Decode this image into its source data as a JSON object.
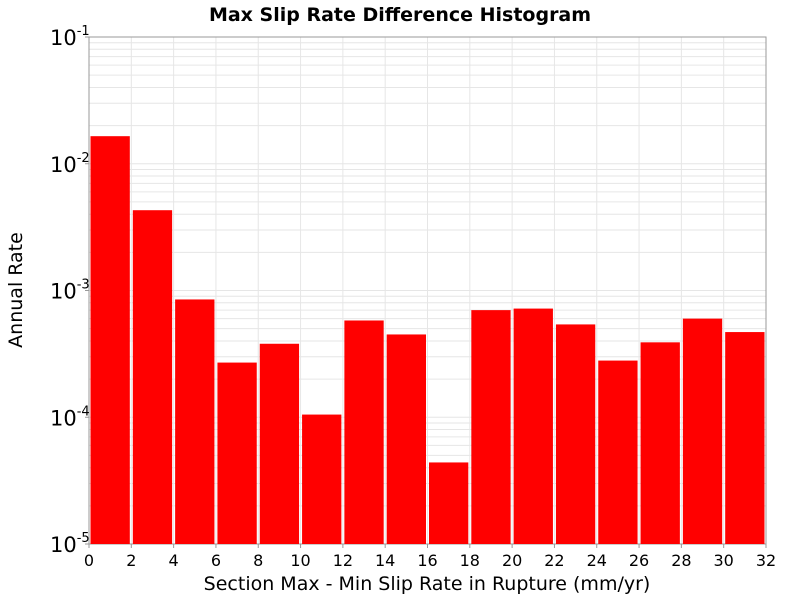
{
  "chart_data": {
    "type": "bar",
    "title": "Max Slip Rate Difference Histogram",
    "xlabel": "Section Max - Min Slip Rate in Rupture (mm/yr)",
    "ylabel": "Annual Rate",
    "y_scale": "log",
    "ylim": [
      1e-05,
      0.1
    ],
    "xlim": [
      0,
      32
    ],
    "bin_width": 2,
    "x_ticks": [
      "0",
      "2",
      "4",
      "6",
      "8",
      "10",
      "12",
      "14",
      "16",
      "18",
      "20",
      "22",
      "24",
      "26",
      "28",
      "30",
      "32"
    ],
    "y_ticks": [
      {
        "base": "10",
        "exp": "-5",
        "value": 1e-05
      },
      {
        "base": "10",
        "exp": "-4",
        "value": 0.0001
      },
      {
        "base": "10",
        "exp": "-3",
        "value": 0.001
      },
      {
        "base": "10",
        "exp": "-2",
        "value": 0.01
      },
      {
        "base": "10",
        "exp": "-1",
        "value": 0.1
      }
    ],
    "bin_centers": [
      1,
      3,
      5,
      7,
      9,
      11,
      13,
      15,
      17,
      19,
      21,
      23,
      25,
      27,
      29,
      31
    ],
    "values": [
      0.0165,
      0.0043,
      0.00085,
      0.00027,
      0.00038,
      0.000105,
      0.00058,
      0.00045,
      4.4e-05,
      0.0007,
      0.00072,
      0.00054,
      0.00028,
      0.00039,
      0.0006,
      0.00047
    ],
    "bar_color": "#ff0000",
    "grid": true,
    "grid_color": "#e6e6e6"
  }
}
